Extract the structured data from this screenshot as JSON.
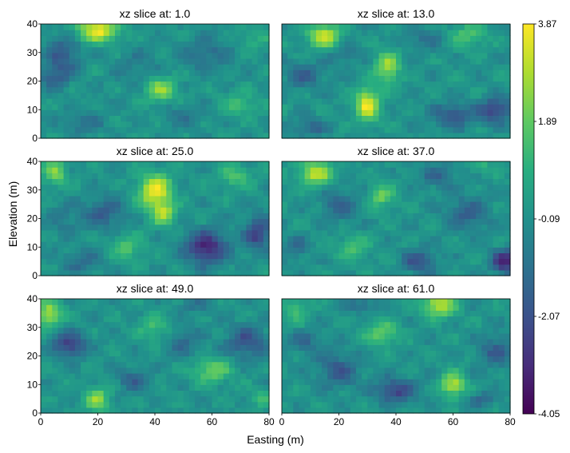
{
  "chart_data": {
    "type": "heatmap",
    "panels": [
      {
        "title": "xz slice at: 1.0",
        "blobs": [
          [
            20,
            38,
            3.6,
            5,
            3
          ],
          [
            42,
            17,
            2.4,
            4,
            3
          ],
          [
            8,
            30,
            -1.8,
            4,
            4
          ],
          [
            5,
            22,
            -1.6,
            4,
            3
          ],
          [
            58,
            30,
            -1.2,
            6,
            4
          ],
          [
            15,
            5,
            -1.0,
            5,
            3
          ],
          [
            70,
            12,
            1.2,
            5,
            3
          ],
          [
            33,
            25,
            -0.8,
            5,
            4
          ],
          [
            75,
            35,
            0.9,
            4,
            3
          ],
          [
            50,
            8,
            -0.9,
            5,
            3
          ]
        ]
      },
      {
        "title": "xz slice at: 13.0",
        "blobs": [
          [
            15,
            36,
            3.3,
            4,
            3
          ],
          [
            30,
            12,
            3.6,
            3,
            4
          ],
          [
            37,
            25,
            2.6,
            3,
            4
          ],
          [
            75,
            10,
            -2.6,
            4,
            3
          ],
          [
            60,
            8,
            -2.0,
            5,
            3
          ],
          [
            8,
            22,
            -1.5,
            5,
            3
          ],
          [
            50,
            35,
            -1.0,
            5,
            3
          ],
          [
            65,
            36,
            1.6,
            5,
            3
          ],
          [
            10,
            4,
            -1.6,
            4,
            2
          ],
          [
            22,
            30,
            -1.0,
            4,
            3
          ]
        ]
      },
      {
        "title": "xz slice at: 25.0",
        "blobs": [
          [
            40,
            30,
            3.8,
            4,
            4
          ],
          [
            43,
            22,
            2.6,
            3,
            3
          ],
          [
            58,
            10,
            -3.3,
            5,
            4
          ],
          [
            76,
            15,
            -2.6,
            3,
            4
          ],
          [
            5,
            36,
            2.2,
            3,
            3
          ],
          [
            30,
            10,
            1.6,
            4,
            3
          ],
          [
            22,
            22,
            -1.6,
            5,
            4
          ],
          [
            15,
            5,
            -1.2,
            5,
            3
          ],
          [
            68,
            35,
            1.5,
            4,
            3
          ],
          [
            8,
            20,
            -0.8,
            4,
            4
          ]
        ]
      },
      {
        "title": "xz slice at: 37.0",
        "blobs": [
          [
            12,
            36,
            3.0,
            4,
            3
          ],
          [
            78,
            5,
            -3.2,
            3,
            3
          ],
          [
            48,
            5,
            -2.0,
            4,
            3
          ],
          [
            20,
            25,
            -1.6,
            4,
            4
          ],
          [
            35,
            28,
            2.0,
            3,
            3
          ],
          [
            65,
            22,
            -1.6,
            5,
            4
          ],
          [
            25,
            10,
            1.4,
            4,
            3
          ],
          [
            55,
            35,
            -1.2,
            5,
            3
          ],
          [
            5,
            10,
            -1.2,
            3,
            3
          ],
          [
            70,
            38,
            1.0,
            3,
            2
          ]
        ]
      },
      {
        "title": "xz slice at: 49.0",
        "blobs": [
          [
            3,
            35,
            3.0,
            3,
            3
          ],
          [
            10,
            24,
            -2.6,
            4,
            3
          ],
          [
            20,
            5,
            2.4,
            3,
            3
          ],
          [
            60,
            15,
            2.0,
            5,
            3
          ],
          [
            72,
            25,
            -2.0,
            5,
            4
          ],
          [
            40,
            30,
            1.4,
            4,
            3
          ],
          [
            32,
            12,
            -1.4,
            4,
            3
          ],
          [
            50,
            25,
            -1.2,
            4,
            4
          ],
          [
            78,
            5,
            1.2,
            3,
            2
          ],
          [
            55,
            38,
            -1.0,
            4,
            2
          ]
        ]
      },
      {
        "title": "xz slice at: 61.0",
        "blobs": [
          [
            55,
            38,
            3.2,
            4,
            3
          ],
          [
            60,
            10,
            3.0,
            3,
            3
          ],
          [
            35,
            28,
            2.0,
            4,
            3
          ],
          [
            40,
            8,
            -2.4,
            5,
            3
          ],
          [
            20,
            15,
            -1.8,
            5,
            4
          ],
          [
            75,
            22,
            -1.6,
            4,
            4
          ],
          [
            8,
            25,
            -1.2,
            4,
            3
          ],
          [
            5,
            36,
            1.5,
            3,
            3
          ],
          [
            28,
            38,
            -1.2,
            4,
            2
          ],
          [
            70,
            5,
            -1.2,
            4,
            2
          ]
        ]
      }
    ],
    "x_range": [
      0,
      80
    ],
    "y_range": [
      0,
      40
    ],
    "xticks": [
      0,
      20,
      40,
      60,
      80
    ],
    "yticks": [
      0,
      10,
      20,
      30,
      40
    ],
    "xlabel": "Easting (m)",
    "ylabel": "Elevation (m)",
    "colormap": "viridis",
    "clim": [
      -4.05,
      3.87
    ],
    "colorbar_ticks": [
      "3.87",
      "1.89",
      "-0.09",
      "-2.07",
      "-4.05"
    ]
  }
}
